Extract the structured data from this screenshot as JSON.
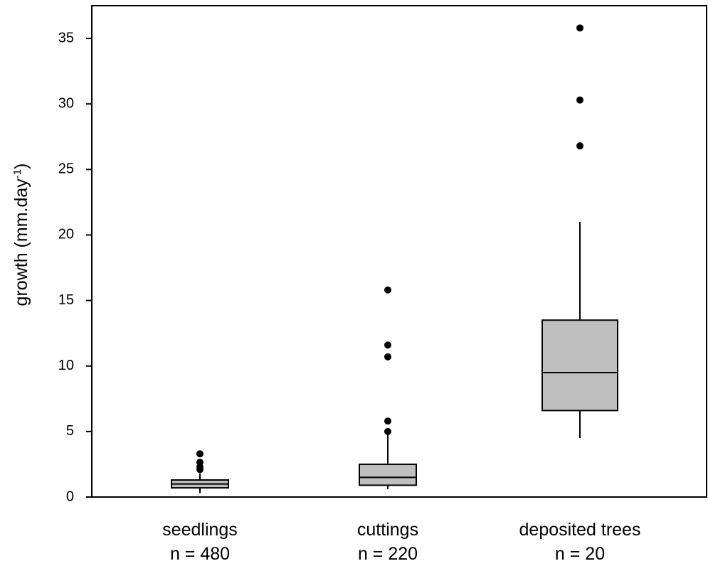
{
  "chart_data": {
    "type": "box",
    "ylabel": {
      "text": "growth (mm.day",
      "superscript": "-1",
      "suffix": ")"
    },
    "categories": [
      "seedlings",
      "cuttings",
      "deposited trees"
    ],
    "sublabels": [
      "n = 480",
      "n = 220",
      "n = 20"
    ],
    "color": "#bfbfbf",
    "boxes": [
      {
        "min": 0.3,
        "q1": 0.7,
        "median": 1.0,
        "q3": 1.3,
        "max": 1.8,
        "outliers": [
          2.1,
          2.3,
          2.65,
          3.3
        ]
      },
      {
        "min": 0.6,
        "q1": 0.9,
        "median": 1.5,
        "q3": 2.5,
        "max": 4.8,
        "outliers": [
          5.0,
          5.8,
          10.7,
          11.6,
          15.8
        ]
      },
      {
        "min": 4.5,
        "q1": 6.6,
        "median": 9.5,
        "q3": 13.5,
        "max": 21.0,
        "outliers": [
          26.8,
          30.3,
          35.8
        ]
      }
    ],
    "ylim": [
      0,
      37.5
    ],
    "yticks": [
      0,
      5,
      10,
      15,
      20,
      25,
      30,
      35
    ]
  }
}
